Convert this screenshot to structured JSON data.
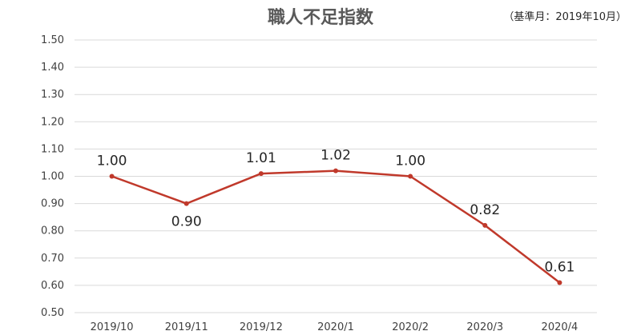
{
  "chart_data": {
    "type": "line",
    "title": "職人不足指数",
    "subtitle": "（基準月：2019年10月）",
    "categories": [
      "2019/10",
      "2019/11",
      "2019/12",
      "2020/1",
      "2020/2",
      "2020/3",
      "2020/4"
    ],
    "series": [
      {
        "values": [
          1.0,
          0.9,
          1.01,
          1.02,
          1.0,
          0.82,
          0.61
        ],
        "labels": [
          "1.00",
          "0.90",
          "1.01",
          "1.02",
          "1.00",
          "0.82",
          "0.61"
        ]
      }
    ],
    "ylim": [
      0.5,
      1.5
    ],
    "yticks": [
      "0.50",
      "0.60",
      "0.70",
      "0.80",
      "0.90",
      "1.00",
      "1.10",
      "1.20",
      "1.30",
      "1.40",
      "1.50"
    ],
    "grid": true,
    "legend": "none",
    "colors": {
      "line": "#c0392b"
    }
  }
}
